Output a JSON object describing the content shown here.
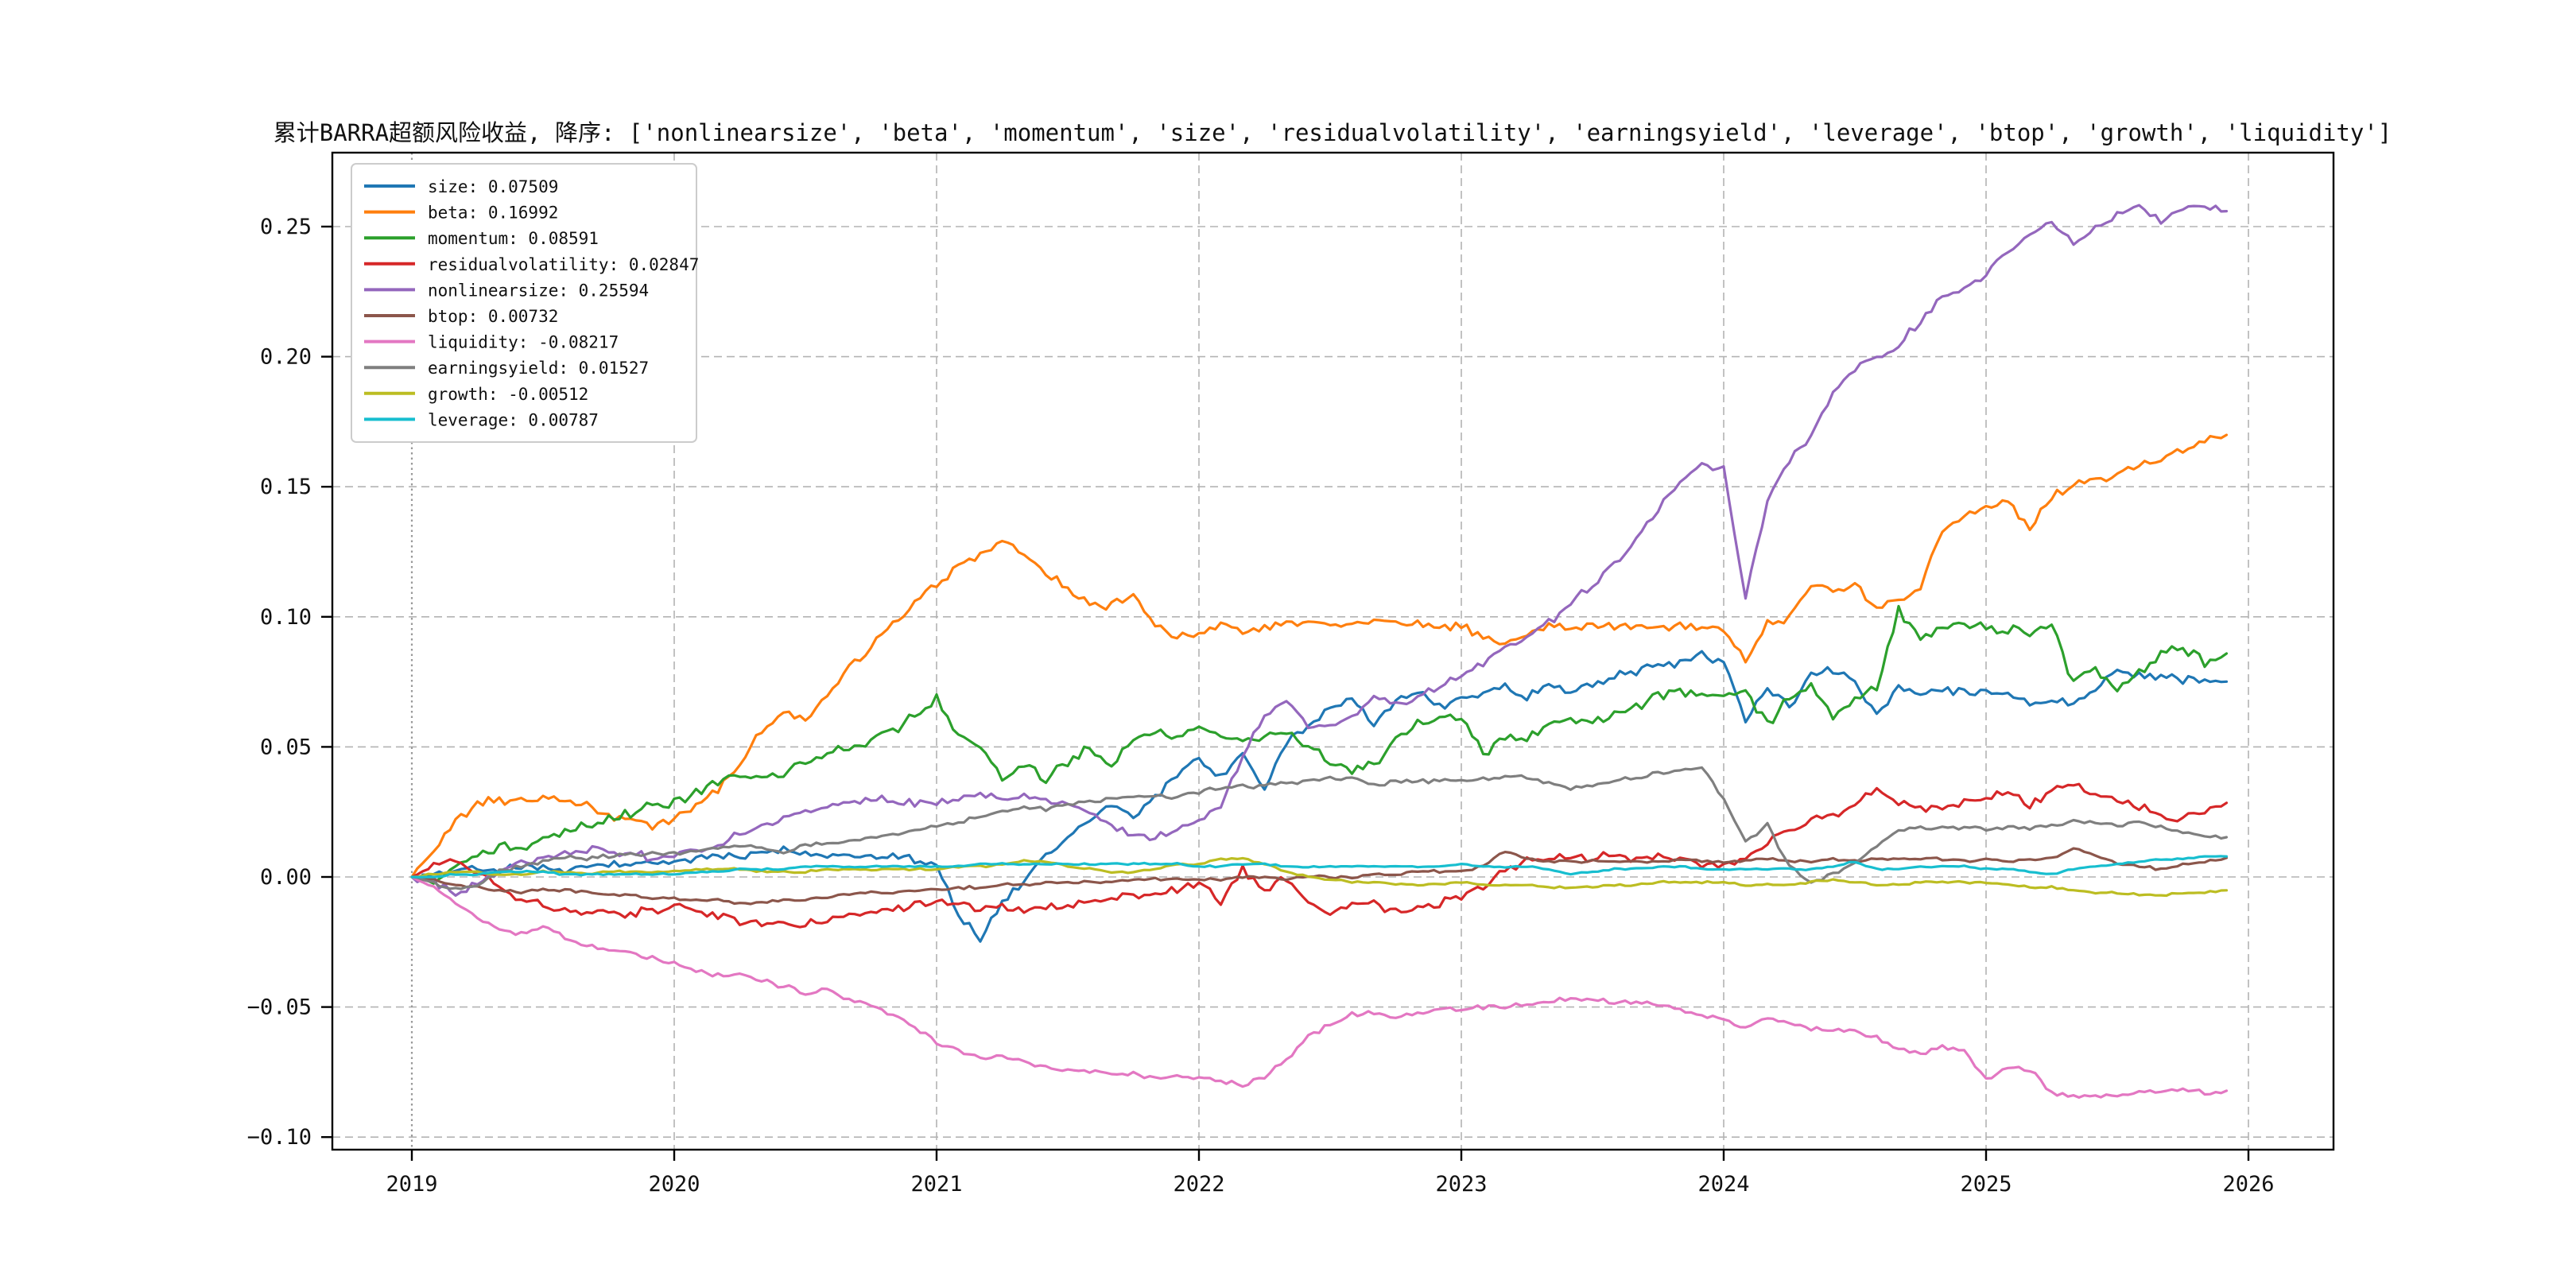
{
  "window": {
    "background": "#ffffff"
  },
  "chart_data": {
    "type": "line",
    "title": "累计BARRA超额风险收益,  降序: ['nonlinearsize', 'beta', 'momentum', 'size', 'residualvolatility', 'earningsyield', 'leverage', 'btop', 'growth', 'liquidity']",
    "xlabel": "",
    "ylabel": "",
    "x_axis": {
      "ticks": [
        2019,
        2020,
        2021,
        2022,
        2023,
        2024,
        2025,
        2026
      ],
      "range": [
        2018.7,
        2026.32
      ]
    },
    "y_axis": {
      "ticks": [
        0.25,
        0.2,
        0.15,
        0.1,
        0.05,
        0.0,
        -0.05,
        -0.1
      ],
      "labels": [
        "0.25",
        "0.20",
        "0.15",
        "0.10",
        "0.05",
        "0.00",
        "−0.05",
        "−0.10"
      ],
      "range": [
        -0.105,
        0.279
      ]
    },
    "grid": {
      "visible": true,
      "style": "dashed",
      "color": "#b3b3b3"
    },
    "start_marker": {
      "x": 2019,
      "style": "dotted",
      "color": "#999999"
    },
    "legend": {
      "position": "upper-left",
      "entries": [
        {
          "label": "size",
          "final_value": 0.07509,
          "text": "size: 0.07509",
          "color": "#1f77b4"
        },
        {
          "label": "beta",
          "final_value": 0.16992,
          "text": "beta: 0.16992",
          "color": "#ff7f0e"
        },
        {
          "label": "momentum",
          "final_value": 0.08591,
          "text": "momentum: 0.08591",
          "color": "#2ca02c"
        },
        {
          "label": "residualvolatility",
          "final_value": 0.02847,
          "text": "residualvolatility: 0.02847",
          "color": "#d62728"
        },
        {
          "label": "nonlinearsize",
          "final_value": 0.25594,
          "text": "nonlinearsize: 0.25594",
          "color": "#9467bd"
        },
        {
          "label": "btop",
          "final_value": 0.00732,
          "text": "btop: 0.00732",
          "color": "#8c564b"
        },
        {
          "label": "liquidity",
          "final_value": -0.08217,
          "text": "liquidity: -0.08217",
          "color": "#e377c2"
        },
        {
          "label": "earningsyield",
          "final_value": 0.01527,
          "text": "earningsyield: 0.01527",
          "color": "#7f7f7f"
        },
        {
          "label": "growth",
          "final_value": -0.00512,
          "text": "growth: -0.00512",
          "color": "#bcbd22"
        },
        {
          "label": "leverage",
          "final_value": 0.00787,
          "text": "leverage: 0.00787",
          "color": "#17becf"
        }
      ]
    },
    "sampling": {
      "x_start": 2019.0,
      "x_step": 0.0833333,
      "points_per_series": 84
    },
    "series": [
      {
        "name": "size",
        "color": "#1f77b4",
        "jitter": 0.0022,
        "values": [
          0.0,
          0.001,
          0.002,
          0.003,
          0.003,
          0.004,
          0.003,
          0.002,
          0.004,
          0.005,
          0.004,
          0.005,
          0.006,
          0.007,
          0.008,
          0.008,
          0.009,
          0.01,
          0.009,
          0.008,
          0.009,
          0.008,
          0.009,
          0.007,
          0.005,
          -0.015,
          -0.024,
          -0.01,
          -0.002,
          0.008,
          0.015,
          0.022,
          0.028,
          0.024,
          0.03,
          0.04,
          0.046,
          0.038,
          0.048,
          0.033,
          0.052,
          0.058,
          0.064,
          0.068,
          0.059,
          0.068,
          0.071,
          0.066,
          0.068,
          0.071,
          0.073,
          0.069,
          0.074,
          0.071,
          0.074,
          0.077,
          0.079,
          0.081,
          0.083,
          0.085,
          0.083,
          0.06,
          0.073,
          0.065,
          0.078,
          0.08,
          0.074,
          0.062,
          0.072,
          0.07,
          0.072,
          0.071,
          0.07,
          0.071,
          0.066,
          0.068,
          0.066,
          0.072,
          0.079,
          0.078,
          0.077,
          0.076,
          0.076,
          0.07509
        ]
      },
      {
        "name": "beta",
        "color": "#ff7f0e",
        "jitter": 0.0022,
        "values": [
          0.0,
          0.01,
          0.022,
          0.028,
          0.03,
          0.029,
          0.031,
          0.03,
          0.027,
          0.024,
          0.022,
          0.02,
          0.022,
          0.027,
          0.034,
          0.044,
          0.056,
          0.063,
          0.06,
          0.07,
          0.08,
          0.088,
          0.097,
          0.106,
          0.113,
          0.119,
          0.124,
          0.128,
          0.124,
          0.117,
          0.111,
          0.104,
          0.104,
          0.108,
          0.097,
          0.091,
          0.094,
          0.096,
          0.094,
          0.095,
          0.097,
          0.098,
          0.097,
          0.098,
          0.097,
          0.098,
          0.097,
          0.096,
          0.096,
          0.092,
          0.088,
          0.094,
          0.096,
          0.095,
          0.096,
          0.097,
          0.096,
          0.096,
          0.096,
          0.096,
          0.095,
          0.084,
          0.097,
          0.099,
          0.112,
          0.11,
          0.113,
          0.103,
          0.107,
          0.112,
          0.133,
          0.138,
          0.142,
          0.145,
          0.134,
          0.146,
          0.15,
          0.152,
          0.155,
          0.158,
          0.161,
          0.164,
          0.167,
          0.16992
        ]
      },
      {
        "name": "momentum",
        "color": "#2ca02c",
        "jitter": 0.0026,
        "values": [
          0.0,
          -0.002,
          0.004,
          0.008,
          0.012,
          0.012,
          0.014,
          0.017,
          0.02,
          0.022,
          0.025,
          0.027,
          0.029,
          0.032,
          0.037,
          0.04,
          0.038,
          0.04,
          0.044,
          0.048,
          0.05,
          0.053,
          0.057,
          0.062,
          0.068,
          0.055,
          0.05,
          0.038,
          0.043,
          0.037,
          0.045,
          0.05,
          0.043,
          0.052,
          0.056,
          0.053,
          0.058,
          0.054,
          0.053,
          0.053,
          0.056,
          0.05,
          0.045,
          0.042,
          0.043,
          0.053,
          0.059,
          0.06,
          0.06,
          0.048,
          0.053,
          0.054,
          0.058,
          0.06,
          0.06,
          0.062,
          0.066,
          0.069,
          0.071,
          0.07,
          0.068,
          0.072,
          0.058,
          0.07,
          0.073,
          0.062,
          0.068,
          0.074,
          0.102,
          0.092,
          0.096,
          0.097,
          0.096,
          0.095,
          0.094,
          0.096,
          0.075,
          0.08,
          0.072,
          0.078,
          0.085,
          0.088,
          0.083,
          0.08591
        ]
      },
      {
        "name": "residualvolatility",
        "color": "#d62728",
        "jitter": 0.002,
        "values": [
          0.0,
          0.004,
          0.006,
          0.002,
          -0.004,
          -0.008,
          -0.011,
          -0.013,
          -0.013,
          -0.014,
          -0.014,
          -0.013,
          -0.012,
          -0.013,
          -0.015,
          -0.017,
          -0.018,
          -0.017,
          -0.018,
          -0.017,
          -0.015,
          -0.013,
          -0.012,
          -0.011,
          -0.01,
          -0.011,
          -0.012,
          -0.012,
          -0.013,
          -0.012,
          -0.011,
          -0.01,
          -0.008,
          -0.007,
          -0.006,
          -0.005,
          -0.002,
          -0.009,
          0.003,
          -0.005,
          -0.001,
          -0.01,
          -0.014,
          -0.011,
          -0.01,
          -0.013,
          -0.012,
          -0.01,
          -0.008,
          -0.004,
          0.002,
          0.007,
          0.007,
          0.008,
          0.007,
          0.008,
          0.007,
          0.008,
          0.007,
          0.005,
          0.004,
          0.008,
          0.013,
          0.018,
          0.022,
          0.024,
          0.028,
          0.034,
          0.028,
          0.027,
          0.026,
          0.028,
          0.03,
          0.032,
          0.028,
          0.033,
          0.035,
          0.032,
          0.03,
          0.027,
          0.024,
          0.022,
          0.026,
          0.02847
        ]
      },
      {
        "name": "nonlinearsize",
        "color": "#9467bd",
        "jitter": 0.002,
        "values": [
          0.0,
          -0.002,
          -0.007,
          -0.003,
          0.002,
          0.005,
          0.007,
          0.009,
          0.01,
          0.01,
          0.009,
          0.008,
          0.008,
          0.01,
          0.013,
          0.016,
          0.02,
          0.023,
          0.025,
          0.027,
          0.028,
          0.03,
          0.029,
          0.028,
          0.028,
          0.03,
          0.032,
          0.03,
          0.031,
          0.03,
          0.028,
          0.025,
          0.02,
          0.016,
          0.015,
          0.019,
          0.022,
          0.028,
          0.045,
          0.063,
          0.068,
          0.057,
          0.058,
          0.062,
          0.07,
          0.066,
          0.069,
          0.073,
          0.077,
          0.082,
          0.088,
          0.092,
          0.098,
          0.105,
          0.112,
          0.12,
          0.13,
          0.142,
          0.152,
          0.158,
          0.157,
          0.107,
          0.145,
          0.16,
          0.17,
          0.185,
          0.196,
          0.2,
          0.204,
          0.214,
          0.223,
          0.225,
          0.232,
          0.24,
          0.247,
          0.252,
          0.243,
          0.249,
          0.255,
          0.258,
          0.253,
          0.257,
          0.259,
          0.25594
        ]
      },
      {
        "name": "btop",
        "color": "#8c564b",
        "jitter": 0.0007,
        "values": [
          0.0,
          -0.001,
          -0.003,
          -0.004,
          -0.005,
          -0.006,
          -0.005,
          -0.005,
          -0.006,
          -0.007,
          -0.007,
          -0.008,
          -0.008,
          -0.009,
          -0.009,
          -0.01,
          -0.01,
          -0.009,
          -0.009,
          -0.008,
          -0.007,
          -0.006,
          -0.006,
          -0.005,
          -0.005,
          -0.004,
          -0.004,
          -0.003,
          -0.003,
          -0.002,
          -0.002,
          -0.002,
          -0.002,
          -0.001,
          -0.001,
          -0.001,
          -0.001,
          -0.001,
          0.0,
          0.0,
          -0.001,
          0.0,
          0.0,
          0.0,
          0.001,
          0.001,
          0.002,
          0.002,
          0.002,
          0.004,
          0.01,
          0.007,
          0.006,
          0.006,
          0.006,
          0.006,
          0.006,
          0.006,
          0.007,
          0.006,
          0.006,
          0.006,
          0.007,
          0.006,
          0.006,
          0.007,
          0.006,
          0.007,
          0.007,
          0.007,
          0.007,
          0.006,
          0.007,
          0.006,
          0.007,
          0.007,
          0.011,
          0.008,
          0.005,
          0.004,
          0.003,
          0.005,
          0.006,
          0.00732
        ]
      },
      {
        "name": "liquidity",
        "color": "#e377c2",
        "jitter": 0.0012,
        "values": [
          0.0,
          -0.004,
          -0.01,
          -0.016,
          -0.02,
          -0.022,
          -0.019,
          -0.023,
          -0.026,
          -0.028,
          -0.029,
          -0.031,
          -0.033,
          -0.036,
          -0.038,
          -0.037,
          -0.04,
          -0.042,
          -0.045,
          -0.043,
          -0.047,
          -0.05,
          -0.053,
          -0.058,
          -0.064,
          -0.067,
          -0.07,
          -0.069,
          -0.071,
          -0.073,
          -0.074,
          -0.075,
          -0.076,
          -0.076,
          -0.077,
          -0.077,
          -0.077,
          -0.078,
          -0.08,
          -0.077,
          -0.07,
          -0.061,
          -0.057,
          -0.053,
          -0.052,
          -0.054,
          -0.052,
          -0.051,
          -0.051,
          -0.05,
          -0.05,
          -0.049,
          -0.048,
          -0.047,
          -0.047,
          -0.048,
          -0.048,
          -0.049,
          -0.051,
          -0.053,
          -0.055,
          -0.058,
          -0.054,
          -0.056,
          -0.058,
          -0.059,
          -0.059,
          -0.062,
          -0.066,
          -0.068,
          -0.065,
          -0.067,
          -0.078,
          -0.073,
          -0.074,
          -0.083,
          -0.085,
          -0.084,
          -0.084,
          -0.083,
          -0.082,
          -0.082,
          -0.083,
          -0.08217
        ]
      },
      {
        "name": "earningsyield",
        "color": "#7f7f7f",
        "jitter": 0.001,
        "values": [
          0.0,
          -0.002,
          -0.005,
          -0.003,
          0.002,
          0.004,
          0.006,
          0.008,
          0.007,
          0.008,
          0.009,
          0.009,
          0.009,
          0.01,
          0.011,
          0.012,
          0.011,
          0.01,
          0.012,
          0.013,
          0.014,
          0.015,
          0.016,
          0.018,
          0.02,
          0.021,
          0.023,
          0.025,
          0.027,
          0.026,
          0.028,
          0.029,
          0.03,
          0.031,
          0.031,
          0.031,
          0.033,
          0.034,
          0.035,
          0.035,
          0.036,
          0.037,
          0.038,
          0.038,
          0.035,
          0.037,
          0.037,
          0.037,
          0.037,
          0.038,
          0.039,
          0.038,
          0.036,
          0.034,
          0.035,
          0.037,
          0.038,
          0.04,
          0.041,
          0.042,
          0.03,
          0.013,
          0.02,
          0.004,
          -0.002,
          0.001,
          0.005,
          0.012,
          0.018,
          0.019,
          0.019,
          0.019,
          0.018,
          0.019,
          0.019,
          0.02,
          0.021,
          0.021,
          0.02,
          0.021,
          0.019,
          0.017,
          0.016,
          0.01527
        ]
      },
      {
        "name": "growth",
        "color": "#bcbd22",
        "jitter": 0.0005,
        "values": [
          0.0,
          0.001,
          0.002,
          0.002,
          0.001,
          0.001,
          0.002,
          0.002,
          0.001,
          0.002,
          0.002,
          0.002,
          0.002,
          0.003,
          0.003,
          0.003,
          0.002,
          0.002,
          0.002,
          0.003,
          0.003,
          0.003,
          0.003,
          0.003,
          0.003,
          0.004,
          0.004,
          0.005,
          0.006,
          0.006,
          0.004,
          0.003,
          0.002,
          0.002,
          0.003,
          0.005,
          0.005,
          0.007,
          0.007,
          0.005,
          0.002,
          0.0,
          -0.001,
          -0.002,
          -0.002,
          -0.003,
          -0.003,
          -0.003,
          -0.002,
          -0.003,
          -0.003,
          -0.003,
          -0.004,
          -0.004,
          -0.004,
          -0.003,
          -0.003,
          -0.002,
          -0.002,
          -0.002,
          -0.002,
          -0.003,
          -0.003,
          -0.003,
          -0.002,
          -0.001,
          -0.002,
          -0.003,
          -0.003,
          -0.002,
          -0.002,
          -0.002,
          -0.002,
          -0.003,
          -0.004,
          -0.004,
          -0.005,
          -0.006,
          -0.006,
          -0.007,
          -0.007,
          -0.006,
          -0.006,
          -0.00512
        ]
      },
      {
        "name": "leverage",
        "color": "#17becf",
        "jitter": 0.0004,
        "values": [
          0.0,
          0.0,
          0.001,
          0.001,
          0.002,
          0.002,
          0.002,
          0.001,
          0.001,
          0.001,
          0.001,
          0.001,
          0.001,
          0.002,
          0.002,
          0.003,
          0.003,
          0.003,
          0.004,
          0.004,
          0.004,
          0.004,
          0.004,
          0.004,
          0.004,
          0.004,
          0.005,
          0.005,
          0.005,
          0.005,
          0.005,
          0.005,
          0.005,
          0.005,
          0.005,
          0.005,
          0.004,
          0.004,
          0.005,
          0.005,
          0.004,
          0.004,
          0.004,
          0.004,
          0.004,
          0.004,
          0.004,
          0.004,
          0.005,
          0.004,
          0.004,
          0.004,
          0.003,
          0.001,
          0.002,
          0.003,
          0.003,
          0.004,
          0.004,
          0.003,
          0.003,
          0.003,
          0.003,
          0.003,
          0.003,
          0.004,
          0.006,
          0.003,
          0.003,
          0.004,
          0.004,
          0.004,
          0.003,
          0.003,
          0.002,
          0.001,
          0.003,
          0.004,
          0.005,
          0.006,
          0.007,
          0.007,
          0.008,
          0.00787
        ]
      }
    ]
  }
}
